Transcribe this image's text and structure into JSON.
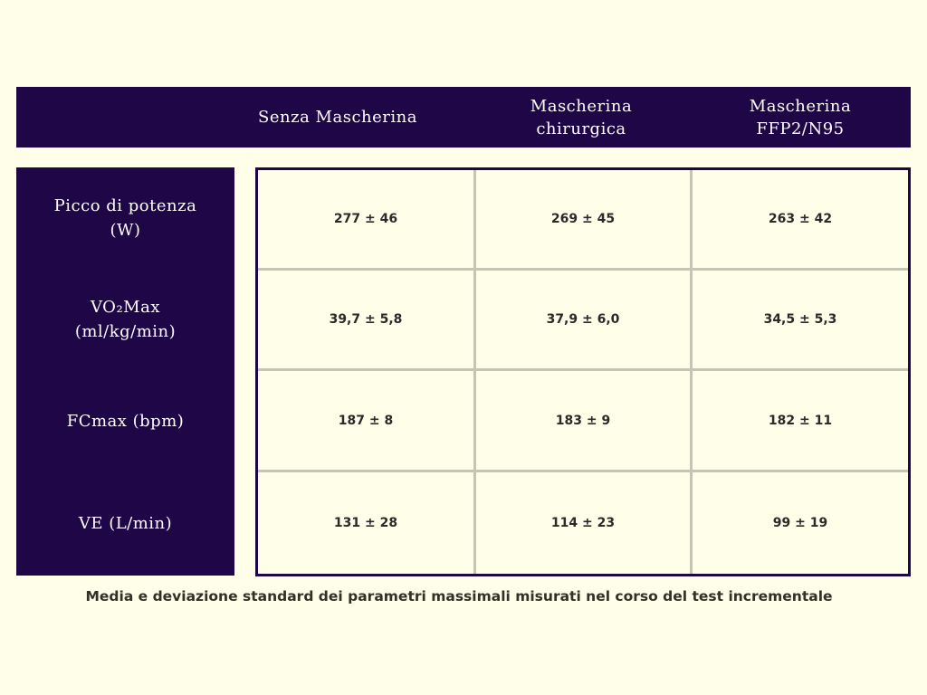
{
  "chart_data": {
    "type": "table",
    "columns": [
      "Senza Mascherina",
      "Mascherina\nchirurgica",
      "Mascherina\nFFP2/N95"
    ],
    "rows": [
      {
        "label": "Picco di potenza\n(W)",
        "values": [
          "277 ± 46",
          "269 ± 45",
          "263 ± 42"
        ]
      },
      {
        "label": "VO₂Max\n(ml/kg/min)",
        "values": [
          "39,7 ± 5,8",
          "37,9 ± 6,0",
          "34,5 ± 5,3"
        ]
      },
      {
        "label": "FCmax (bpm)",
        "values": [
          "187 ± 8",
          "183 ± 9",
          "182 ± 11"
        ]
      },
      {
        "label": "VE (L/min)",
        "values": [
          "131 ± 28",
          "114 ± 23",
          "99 ± 19"
        ]
      }
    ],
    "caption": "Media e deviazione standard dei parametri massimali misurati nel corso del test incrementale"
  },
  "colors": {
    "header_background": "#1f0747",
    "page_background": "#fefee9",
    "grid_lines": "#c6c4b4"
  }
}
